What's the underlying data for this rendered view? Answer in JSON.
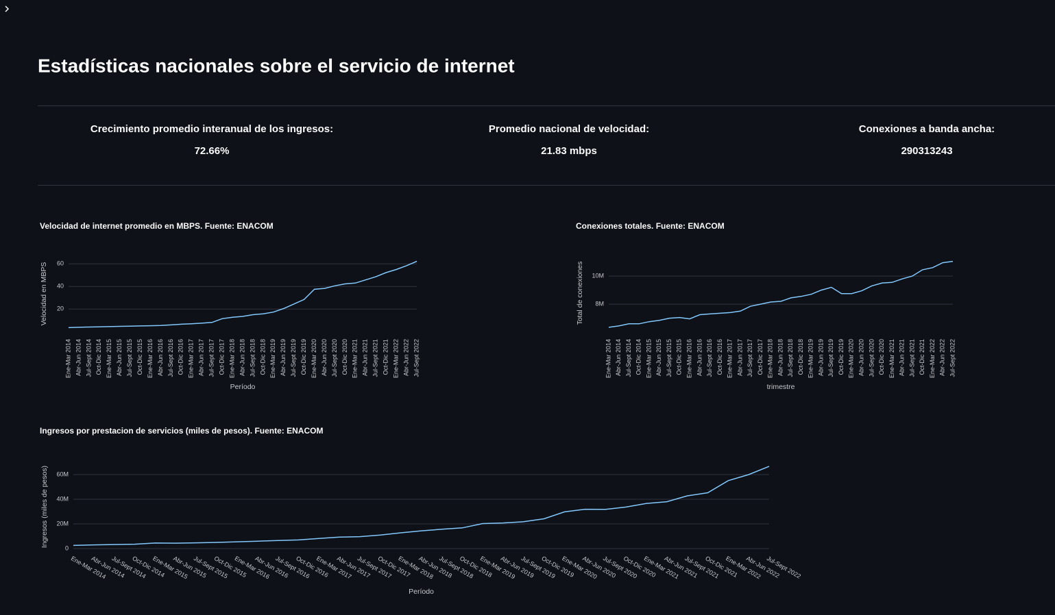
{
  "header": {
    "title": "Estadísticas nacionales sobre el servicio de internet"
  },
  "metrics": [
    {
      "label": "Crecimiento promedio interanual de los ingresos:",
      "value": "72.66%"
    },
    {
      "label": "Promedio nacional de velocidad:",
      "value": "21.83 mbps"
    },
    {
      "label": "Conexiones a banda ancha:",
      "value": "290313243"
    }
  ],
  "chart_data": [
    {
      "type": "line",
      "title": "Velocidad de internet promedio en MBPS. Fuente: ENACOM",
      "x_label": "Período",
      "y_label": "Velocidad en MBPS",
      "categories": [
        "Ene-Mar 2014",
        "Abr-Jun 2014",
        "Jul-Sept 2014",
        "Oct-Dic 2014",
        "Ene-Mar 2015",
        "Abr-Jun 2015",
        "Jul-Sept 2015",
        "Oct-Dic 2015",
        "Ene-Mar 2016",
        "Abr-Jun 2016",
        "Jul-Sept 2016",
        "Oct-Dic 2016",
        "Ene-Mar 2017",
        "Abr-Jun 2017",
        "Jul-Sept 2017",
        "Oct-Dic 2017",
        "Ene-Mar 2018",
        "Abr-Jun 2018",
        "Jul-Sept 2018",
        "Oct-Dic 2018",
        "Ene-Mar 2019",
        "Abr-Jun 2019",
        "Jul-Sept 2019",
        "Oct-Dic 2019",
        "Ene-Mar 2020",
        "Abr-Jun 2020",
        "Jul-Sept 2020",
        "Oct-Dic 2020",
        "Ene-Mar 2021",
        "Abr-Jun 2021",
        "Jul-Sept 2021",
        "Oct-Dic 2021",
        "Ene-Mar 2022",
        "Abr-Jun 2022",
        "Jul-Sept 2022"
      ],
      "series": [
        {
          "name": "Velocidad",
          "color": "#83c9ff",
          "values": [
            3.6,
            3.9,
            4.1,
            4.3,
            4.5,
            4.7,
            4.9,
            5.1,
            5.3,
            5.5,
            6.0,
            6.6,
            7.0,
            7.5,
            8.2,
            11.5,
            12.8,
            13.5,
            15.0,
            15.8,
            17.3,
            20.5,
            24.5,
            28.5,
            37.5,
            38.3,
            40.6,
            42.3,
            43.0,
            45.8,
            48.6,
            52.3,
            55.0,
            58.4,
            62.3
          ]
        }
      ],
      "ylim": [
        2,
        65
      ],
      "yticks": [
        20,
        40,
        60
      ],
      "grid": true
    },
    {
      "type": "line",
      "title": "Conexiones totales. Fuente: ENACOM",
      "x_label": "trimestre",
      "y_label": "Total de conexiones",
      "categories": [
        "Ene-Mar 2014",
        "Abr-Jun 2014",
        "Jul-Sept 2014",
        "Oct-Dic 2014",
        "Ene-Mar 2015",
        "Abr-Jun 2015",
        "Jul-Sept 2015",
        "Oct-Dic 2015",
        "Ene-Mar 2016",
        "Abr-Jun 2016",
        "Jul-Sept 2016",
        "Oct-Dic 2016",
        "Ene-Mar 2017",
        "Abr-Jun 2017",
        "Jul-Sept 2017",
        "Oct-Dic 2017",
        "Ene-Mar 2018",
        "Abr-Jun 2018",
        "Jul-Sept 2018",
        "Oct-Dic 2018",
        "Ene-Mar 2019",
        "Abr-Jun 2019",
        "Jul-Sept 2019",
        "Oct-Dic 2019",
        "Ene-Mar 2020",
        "Abr-Jun 2020",
        "Jul-Sept 2020",
        "Oct-Dic 2020",
        "Ene-Mar 2021",
        "Abr-Jun 2021",
        "Jul-Sept 2021",
        "Oct-Dic 2021",
        "Ene-Mar 2022",
        "Abr-Jun 2022",
        "Jul-Sept 2022"
      ],
      "series": [
        {
          "name": "Conexiones",
          "color": "#83c9ff",
          "values": [
            6350000,
            6450000,
            6600000,
            6600000,
            6750000,
            6850000,
            7000000,
            7050000,
            6950000,
            7250000,
            7300000,
            7350000,
            7400000,
            7500000,
            7850000,
            8000000,
            8150000,
            8200000,
            8450000,
            8550000,
            8700000,
            9000000,
            9200000,
            8750000,
            8750000,
            8950000,
            9300000,
            9500000,
            9550000,
            9800000,
            10000000,
            10450000,
            10600000,
            10950000,
            11050000
          ]
        }
      ],
      "ylim": [
        6200000,
        11370000
      ],
      "yticks": [
        {
          "value": 8000000,
          "label": "8M"
        },
        {
          "value": 10000000,
          "label": "10M"
        }
      ],
      "grid": true
    },
    {
      "type": "line",
      "title": "Ingresos por prestacion de servicios (miles de pesos). Fuente: ENACOM",
      "x_label": "Período",
      "y_label": "Ingresos (miles de pesos)",
      "categories": [
        "Ene-Mar 2014",
        "Abr-Jun 2014",
        "Jul-Sept 2014",
        "Oct-Dic 2014",
        "Ene-Mar 2015",
        "Abr-Jun 2015",
        "Jul-Sept 2015",
        "Oct-Dic 2015",
        "Ene-Mar 2016",
        "Abr-Jun 2016",
        "Jul-Sept 2016",
        "Oct-Dic 2016",
        "Ene-Mar 2017",
        "Abr-Jun 2017",
        "Jul-Sept 2017",
        "Oct-Dic 2017",
        "Ene-Mar 2018",
        "Abr-Jun 2018",
        "Jul-Sept 2018",
        "Oct-Dic 2018",
        "Ene-Mar 2019",
        "Abr-Jun 2019",
        "Jul-Sept 2019",
        "Oct-Dic 2019",
        "Ene-Mar 2020",
        "Abr-Jun 2020",
        "Jul-Sept 2020",
        "Oct-Dic 2020",
        "Ene-Mar 2021",
        "Abr-Jun 2021",
        "Jul-Sept 2021",
        "Oct-Dic 2021",
        "Ene-Mar 2022",
        "Abr-Jun 2022",
        "Jul-Sept 2022"
      ],
      "series": [
        {
          "name": "Ingresos",
          "color": "#83c9ff",
          "values": [
            2600000,
            3000000,
            3300000,
            3600000,
            4500000,
            4400000,
            4700000,
            5000000,
            5500000,
            6000000,
            6500000,
            7000000,
            8200000,
            9300000,
            9700000,
            11000000,
            12800000,
            14400000,
            15700000,
            16800000,
            20300000,
            20800000,
            21800000,
            24200000,
            29800000,
            31900000,
            31800000,
            33700000,
            36600000,
            38000000,
            42800000,
            45300000,
            55100000,
            60000000,
            66700000
          ]
        }
      ],
      "ylim": [
        -2200000,
        70000000
      ],
      "yticks": [
        0,
        {
          "value": 20000000,
          "label": "20M"
        },
        {
          "value": 40000000,
          "label": "40M"
        },
        {
          "value": 60000000,
          "label": "60M"
        }
      ],
      "grid": true
    }
  ]
}
